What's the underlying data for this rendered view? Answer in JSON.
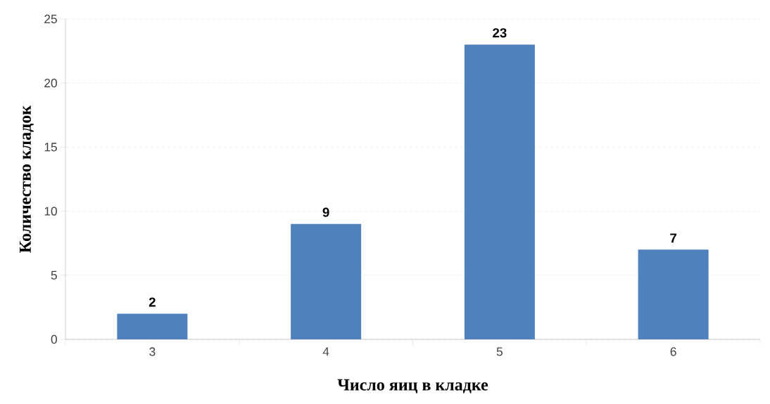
{
  "chart_data": {
    "type": "bar",
    "xlabel": "Число яиц в кладке",
    "ylabel": "Количество кладок",
    "categories": [
      "3",
      "4",
      "5",
      "6"
    ],
    "values": [
      2,
      9,
      23,
      7
    ],
    "color": "#4f81bd",
    "ylim": [
      0,
      25
    ],
    "yticks": [
      0,
      5,
      10,
      15,
      20,
      25
    ],
    "grid": "y",
    "data_labels": true
  }
}
